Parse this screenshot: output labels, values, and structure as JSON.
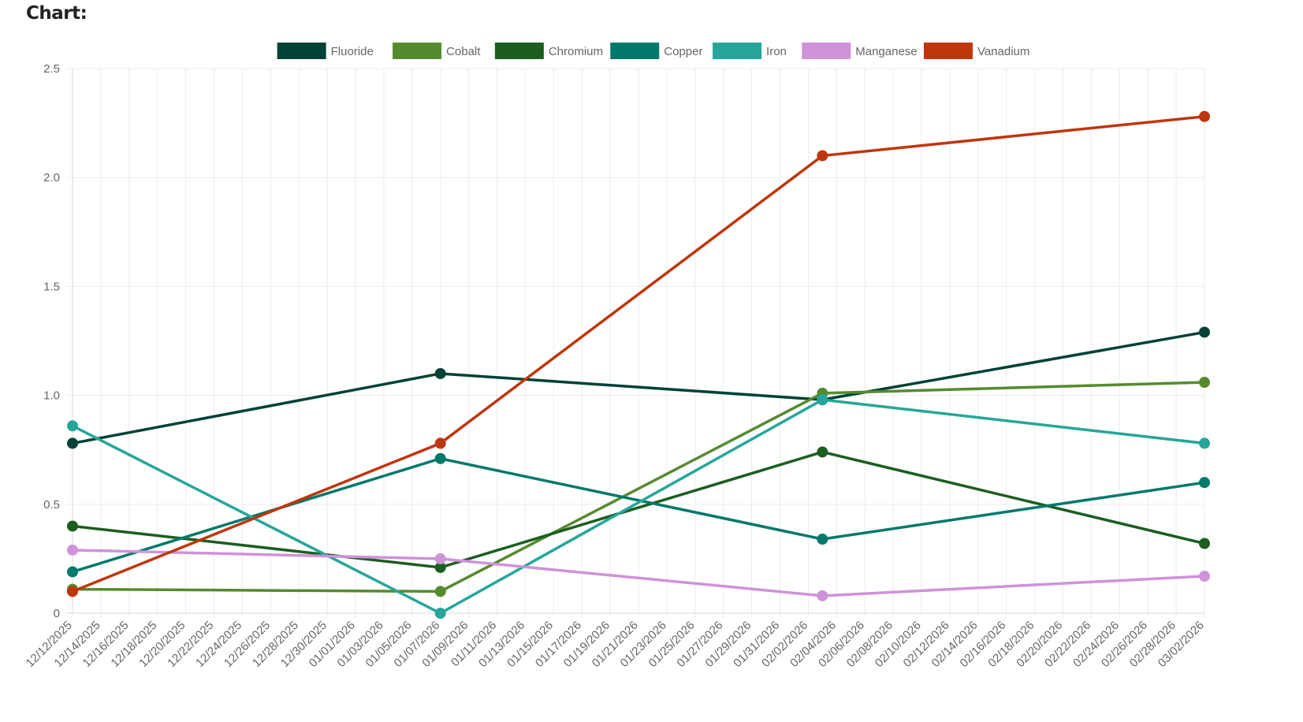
{
  "heading": "Chart:",
  "chart_data": {
    "type": "line",
    "title": "",
    "xlabel": "",
    "ylabel": "",
    "ylim": [
      0,
      2.5
    ],
    "yticks": [
      0,
      0.5,
      1.0,
      1.5,
      2.0,
      2.5
    ],
    "ytick_labels": [
      "0",
      "0.5",
      "1.0",
      "1.5",
      "2.0",
      "2.5"
    ],
    "xlim": [
      "12/12/2025",
      "03/02/2026"
    ],
    "xtick_step_days": 2,
    "grid": true,
    "legend_position": "top",
    "x": [
      "12/12/2025",
      "01/07/2026",
      "02/03/2026",
      "03/02/2026"
    ],
    "series": [
      {
        "name": "Fluoride",
        "color": "#004236",
        "values": [
          0.78,
          1.1,
          0.98,
          1.29
        ]
      },
      {
        "name": "Cobalt",
        "color": "#558b2f",
        "values": [
          0.11,
          0.1,
          1.01,
          1.06
        ]
      },
      {
        "name": "Chromium",
        "color": "#1b5e20",
        "values": [
          0.4,
          0.21,
          0.74,
          0.32
        ]
      },
      {
        "name": "Copper",
        "color": "#00796b",
        "values": [
          0.19,
          0.71,
          0.34,
          0.6
        ]
      },
      {
        "name": "Iron",
        "color": "#26a69a",
        "values": [
          0.86,
          0.0,
          0.98,
          0.78
        ]
      },
      {
        "name": "Manganese",
        "color": "#ce93d8",
        "values": [
          0.29,
          0.25,
          0.08,
          0.17
        ]
      },
      {
        "name": "Vanadium",
        "color": "#bf360c",
        "values": [
          0.1,
          0.78,
          2.1,
          2.28
        ]
      }
    ]
  }
}
